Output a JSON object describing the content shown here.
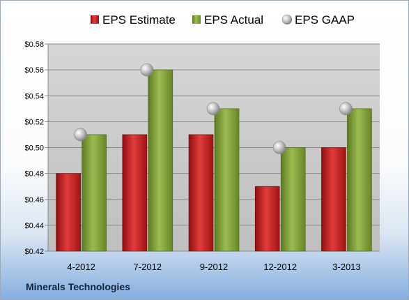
{
  "company": "Minerals Technologies",
  "chart_data": {
    "type": "bar",
    "categories": [
      "4-2012",
      "7-2012",
      "9-2012",
      "12-2012",
      "3-2013"
    ],
    "series": [
      {
        "name": "EPS Estimate",
        "kind": "bar",
        "color": "#c41f1f",
        "values": [
          0.48,
          0.51,
          0.51,
          0.47,
          0.5
        ]
      },
      {
        "name": "EPS Actual",
        "kind": "bar",
        "color": "#86a53a",
        "values": [
          0.51,
          0.56,
          0.53,
          0.5,
          0.53
        ]
      },
      {
        "name": "EPS GAAP",
        "kind": "marker",
        "color": "#a8a8a8",
        "values": [
          0.51,
          0.56,
          0.53,
          0.5,
          0.53
        ]
      }
    ],
    "yticks": [
      "$0.42",
      "$0.44",
      "$0.46",
      "$0.48",
      "$0.50",
      "$0.52",
      "$0.54",
      "$0.56",
      "$0.58"
    ],
    "ylim": [
      0.42,
      0.58
    ],
    "grid": true,
    "legend_position": "top"
  }
}
